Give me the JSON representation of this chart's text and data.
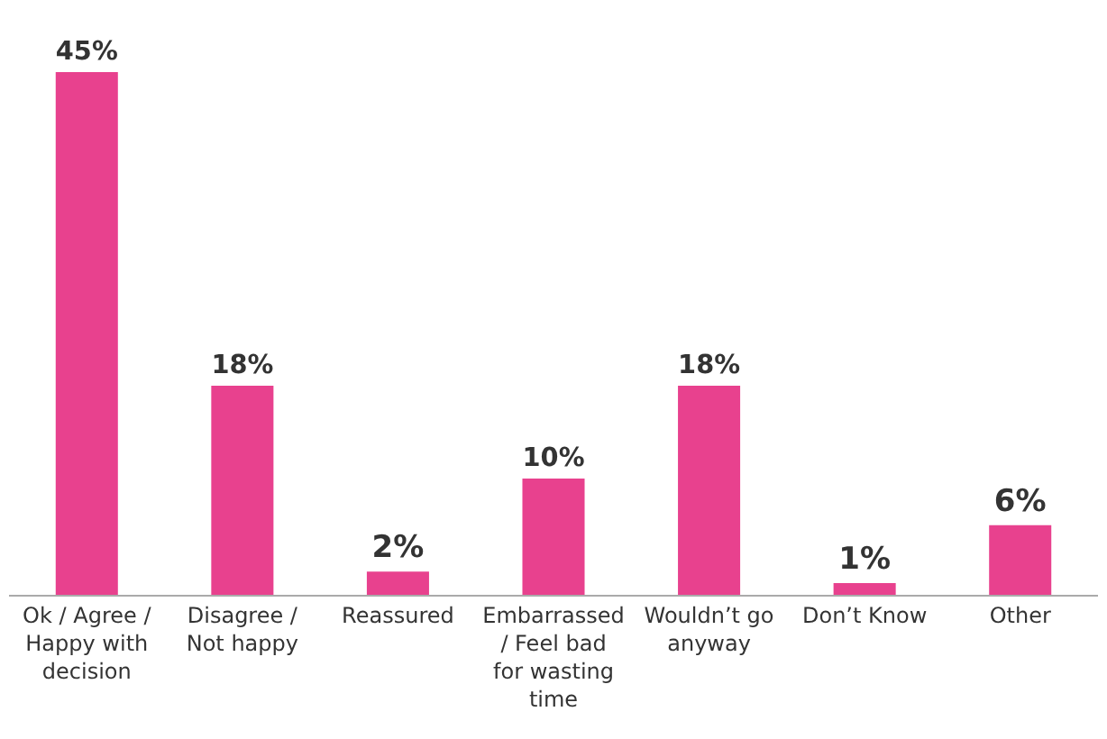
{
  "chart_data": {
    "type": "bar",
    "categories": [
      "Ok / Agree / Happy with decision",
      "Disagree / Not happy",
      "Reassured",
      "Embarrassed / Feel bad for wasting time",
      "Wouldn’t go anyway",
      "Don’t Know",
      "Other"
    ],
    "values": [
      45,
      18,
      2,
      10,
      18,
      1,
      6
    ],
    "value_labels": [
      "45%",
      "18%",
      "2%",
      "10%",
      "18%",
      "1%",
      "6%"
    ],
    "color": "#e8418e",
    "ylim": [
      0,
      45
    ]
  }
}
